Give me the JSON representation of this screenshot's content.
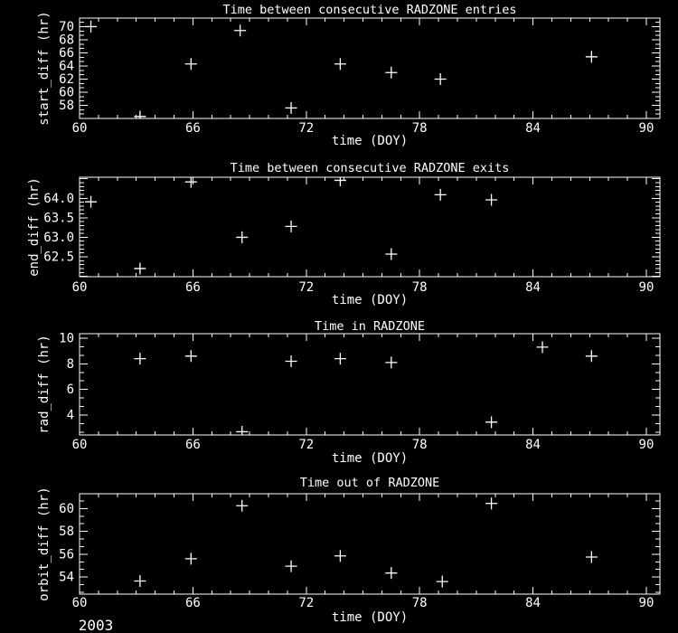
{
  "window": {
    "background": "#000000",
    "foreground": "#ffffff",
    "year_label": "2003"
  },
  "chart_data": [
    {
      "type": "scatter",
      "title": "Time between consecutive RADZONE entries",
      "xlabel": "time (DOY)",
      "ylabel": "start_diff (hr)",
      "xlim": [
        60,
        90.72
      ],
      "ylim": [
        56.0,
        71.3
      ],
      "x_ticks": [
        60,
        66,
        72,
        78,
        84,
        90
      ],
      "x_tick_labels": [
        "60",
        "66",
        "72",
        "78",
        "84",
        "90"
      ],
      "y_ticks": [
        58,
        60,
        62,
        64,
        66,
        68,
        70
      ],
      "y_tick_labels": [
        "58",
        "60",
        "62",
        "64",
        "66",
        "68",
        "70"
      ],
      "x_minor_divs": 6,
      "y_minor_divs": 3,
      "marker": "plus",
      "grid": false,
      "legend": null,
      "points": [
        [
          60.6,
          70.0
        ],
        [
          63.2,
          56.3
        ],
        [
          65.9,
          64.3
        ],
        [
          68.5,
          69.4
        ],
        [
          71.2,
          57.6
        ],
        [
          73.8,
          64.3
        ],
        [
          76.5,
          63.0
        ],
        [
          79.1,
          62.0
        ],
        [
          87.1,
          65.4
        ]
      ]
    },
    {
      "type": "scatter",
      "title": "Time between consecutive RADZONE exits",
      "xlabel": "time (DOY)",
      "ylabel": "end_diff (hr)",
      "xlim": [
        60,
        90.72
      ],
      "ylim": [
        61.99,
        64.54
      ],
      "x_ticks": [
        60,
        66,
        72,
        78,
        84,
        90
      ],
      "x_tick_labels": [
        "60",
        "66",
        "72",
        "78",
        "84",
        "90"
      ],
      "y_ticks": [
        62.5,
        63.0,
        63.5,
        64.0
      ],
      "y_tick_labels": [
        "62.5",
        "63.0",
        "63.5",
        "64.0"
      ],
      "x_minor_divs": 6,
      "y_minor_divs": 5,
      "marker": "plus",
      "grid": false,
      "legend": null,
      "points": [
        [
          60.6,
          63.91
        ],
        [
          63.2,
          62.2
        ],
        [
          65.9,
          64.42
        ],
        [
          68.6,
          63.0
        ],
        [
          71.2,
          63.28
        ],
        [
          73.8,
          64.46
        ],
        [
          76.5,
          62.57
        ],
        [
          79.1,
          64.09
        ],
        [
          81.8,
          63.96
        ]
      ]
    },
    {
      "type": "scatter",
      "title": "Time in RADZONE",
      "xlabel": "time (DOY)",
      "ylabel": "rad_diff (hr)",
      "xlim": [
        60,
        90.72
      ],
      "ylim": [
        2.45,
        10.35
      ],
      "x_ticks": [
        60,
        66,
        72,
        78,
        84,
        90
      ],
      "x_tick_labels": [
        "60",
        "66",
        "72",
        "78",
        "84",
        "90"
      ],
      "y_ticks": [
        4,
        6,
        8,
        10
      ],
      "y_tick_labels": [
        "4",
        "6",
        "8",
        "10"
      ],
      "x_minor_divs": 6,
      "y_minor_divs": 3,
      "marker": "plus",
      "grid": false,
      "legend": null,
      "points": [
        [
          63.2,
          8.4
        ],
        [
          65.9,
          8.6
        ],
        [
          68.6,
          2.7
        ],
        [
          71.2,
          8.2
        ],
        [
          73.8,
          8.4
        ],
        [
          76.5,
          8.1
        ],
        [
          81.8,
          3.45
        ],
        [
          84.5,
          9.3
        ],
        [
          87.1,
          8.6
        ]
      ]
    },
    {
      "type": "scatter",
      "title": "Time out of RADZONE",
      "xlabel": "time (DOY)",
      "ylabel": "orbit_diff (hr)",
      "xlim": [
        60,
        90.72
      ],
      "ylim": [
        52.5,
        61.3
      ],
      "x_ticks": [
        60,
        66,
        72,
        78,
        84,
        90
      ],
      "x_tick_labels": [
        "60",
        "66",
        "72",
        "78",
        "84",
        "90"
      ],
      "y_ticks": [
        54,
        56,
        58,
        60
      ],
      "y_tick_labels": [
        "54",
        "56",
        "58",
        "60"
      ],
      "x_minor_divs": 6,
      "y_minor_divs": 3,
      "marker": "plus",
      "grid": false,
      "legend": null,
      "points": [
        [
          63.2,
          53.65
        ],
        [
          65.9,
          55.6
        ],
        [
          68.6,
          60.25
        ],
        [
          71.2,
          54.95
        ],
        [
          73.8,
          55.85
        ],
        [
          76.5,
          54.35
        ],
        [
          79.2,
          53.6
        ],
        [
          81.8,
          60.45
        ],
        [
          87.1,
          55.75
        ]
      ]
    }
  ]
}
